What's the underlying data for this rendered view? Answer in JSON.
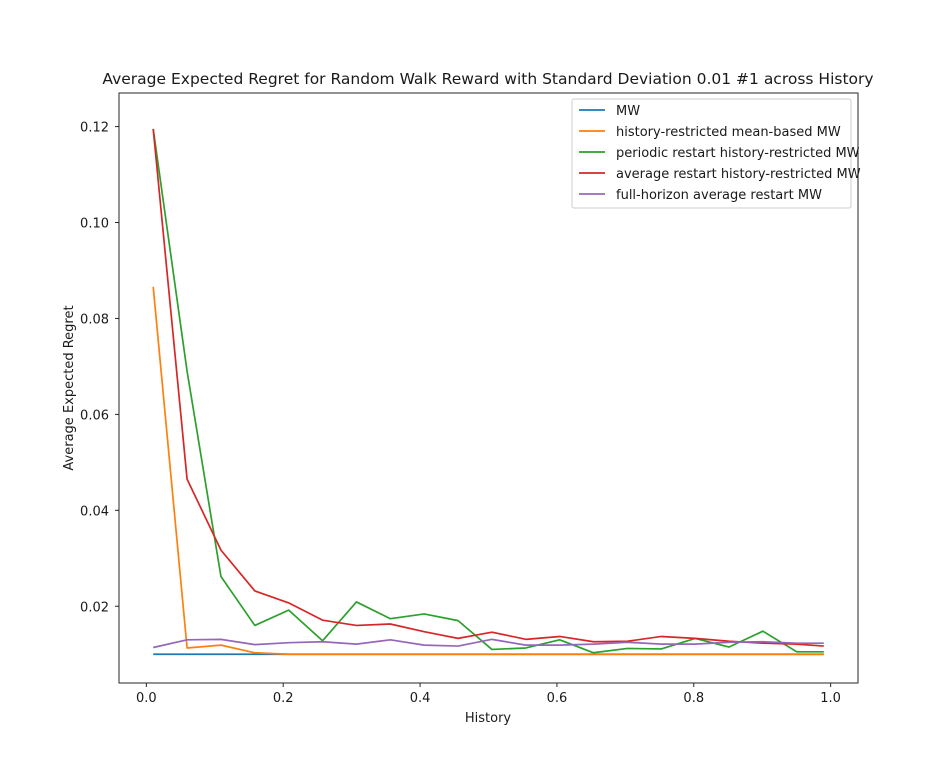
{
  "chart_data": {
    "type": "line",
    "title": "Average Expected Regret for Random Walk Reward with Standard Deviation 0.01 #1 across History",
    "xlabel": "History",
    "ylabel": "Average Expected Regret",
    "xlim": [
      -0.04,
      1.04
    ],
    "ylim": [
      0.004,
      0.127
    ],
    "xticks": [
      0.0,
      0.2,
      0.4,
      0.6,
      0.8,
      1.0
    ],
    "xtick_labels": [
      "0.0",
      "0.2",
      "0.4",
      "0.6",
      "0.8",
      "1.0"
    ],
    "yticks": [
      0.02,
      0.04,
      0.06,
      0.08,
      0.1,
      0.12
    ],
    "ytick_labels": [
      "0.02",
      "0.04",
      "0.06",
      "0.08",
      "0.10",
      "0.12"
    ],
    "grid": false,
    "legend_position": "top-right",
    "x": [
      0.01,
      0.0595,
      0.109,
      0.1585,
      0.208,
      0.2575,
      0.307,
      0.3565,
      0.406,
      0.4555,
      0.505,
      0.5545,
      0.604,
      0.6535,
      0.703,
      0.7525,
      0.802,
      0.8515,
      0.901,
      0.9505,
      0.99
    ],
    "series": [
      {
        "name": "MW",
        "color": "#1f77b4",
        "values": [
          0.01,
          0.01,
          0.01,
          0.01,
          0.01,
          0.01,
          0.01,
          0.01,
          0.01,
          0.01,
          0.01,
          0.01,
          0.01,
          0.01,
          0.01,
          0.01,
          0.01,
          0.01,
          0.01,
          0.01,
          0.01
        ]
      },
      {
        "name": "history-restricted mean-based MW",
        "color": "#ff7f0e",
        "values": [
          0.0866,
          0.0113,
          0.0119,
          0.0103,
          0.01,
          0.01,
          0.01,
          0.01,
          0.01,
          0.01,
          0.01,
          0.01,
          0.01,
          0.01,
          0.01,
          0.01,
          0.01,
          0.01,
          0.01,
          0.01,
          0.01
        ]
      },
      {
        "name": "periodic restart history-restricted MW",
        "color": "#2ca02c",
        "values": [
          0.1195,
          0.069,
          0.0262,
          0.016,
          0.0192,
          0.0128,
          0.0209,
          0.0174,
          0.0184,
          0.017,
          0.011,
          0.0113,
          0.013,
          0.0103,
          0.0112,
          0.0111,
          0.0133,
          0.0115,
          0.0148,
          0.0105,
          0.0105
        ]
      },
      {
        "name": "average restart history-restricted MW",
        "color": "#d62728",
        "values": [
          0.1195,
          0.0465,
          0.0317,
          0.0232,
          0.0207,
          0.0171,
          0.016,
          0.0163,
          0.0147,
          0.0133,
          0.0146,
          0.0131,
          0.0137,
          0.0126,
          0.0127,
          0.0137,
          0.0133,
          0.0127,
          0.0123,
          0.0121,
          0.0117
        ]
      },
      {
        "name": "full-horizon average restart MW",
        "color": "#9467bd",
        "values": [
          0.0114,
          0.013,
          0.0131,
          0.012,
          0.0124,
          0.0126,
          0.0121,
          0.013,
          0.0119,
          0.0117,
          0.0131,
          0.0119,
          0.0119,
          0.0121,
          0.0125,
          0.0121,
          0.0121,
          0.0125,
          0.0126,
          0.0123,
          0.0123
        ]
      }
    ]
  }
}
